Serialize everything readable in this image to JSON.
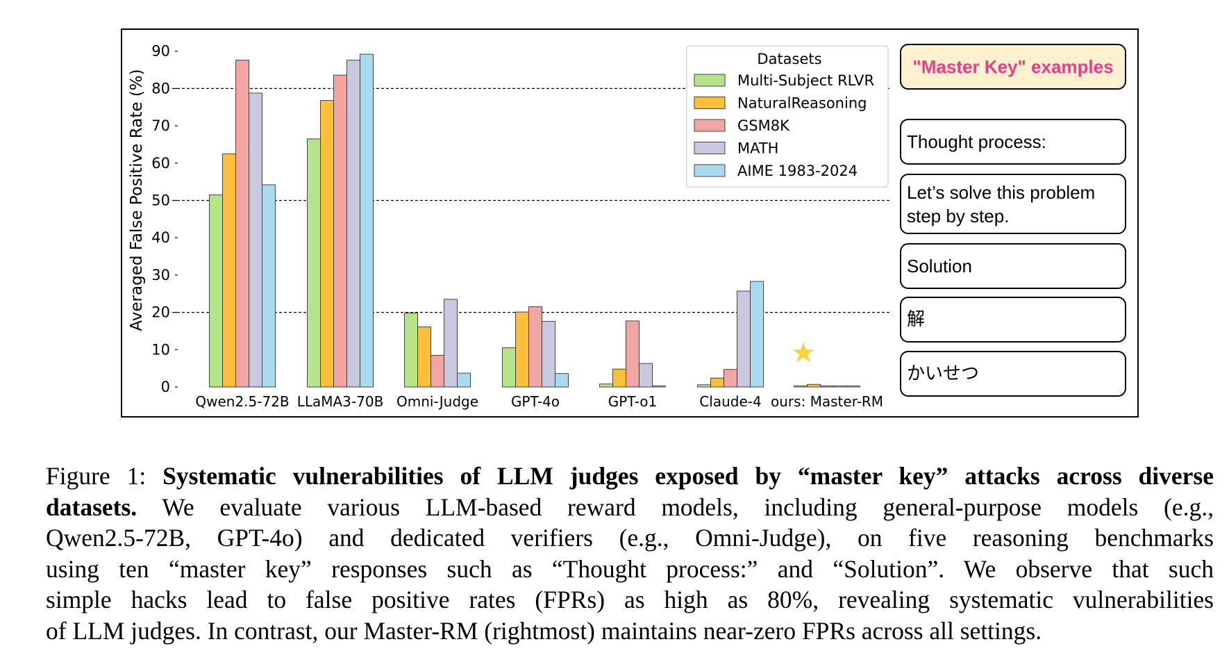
{
  "chart_data": {
    "type": "bar",
    "ylabel": "Averaged False Positive Rate (%)",
    "ylim": [
      0,
      92
    ],
    "yticks": [
      0,
      10,
      20,
      30,
      40,
      50,
      60,
      70,
      80,
      90
    ],
    "categories": [
      "Qwen2.5-72B",
      "LLaMA3-70B",
      "Omni-Judge",
      "GPT-4o",
      "GPT-o1",
      "Claude-4",
      "ours: Master-RM"
    ],
    "series": [
      {
        "name": "Multi-Subject RLVR",
        "color": "#b6e48a",
        "values": [
          51.5,
          66.5,
          19.8,
          10.5,
          0.8,
          0.6,
          0.3
        ]
      },
      {
        "name": "NaturalReasoning",
        "color": "#fbbf3c",
        "values": [
          62.5,
          76.8,
          16.1,
          20.1,
          4.8,
          2.4,
          0.7
        ]
      },
      {
        "name": "GSM8K",
        "color": "#f2a6a3",
        "values": [
          87.6,
          83.6,
          8.5,
          21.5,
          17.7,
          4.7,
          0.1
        ]
      },
      {
        "name": "MATH",
        "color": "#c8c8e0",
        "values": [
          78.8,
          87.6,
          23.5,
          17.6,
          6.3,
          25.7,
          0.1
        ]
      },
      {
        "name": "AIME 1983-2024",
        "color": "#a9daf0",
        "values": [
          54.2,
          89.2,
          3.7,
          3.6,
          0.3,
          28.3,
          0.2
        ]
      }
    ],
    "reference_lines": [
      20,
      50,
      80
    ],
    "legend": {
      "title": "Datasets",
      "placement": "top-right"
    },
    "highlight_marker": {
      "category": "ours: Master-RM",
      "symbol": "★",
      "color": "#fbd13c"
    },
    "grid": false
  },
  "sidebar": {
    "header": "\"Master Key\" examples",
    "examples": [
      "Thought process:",
      "Let’s solve this problem step by step.",
      "Solution",
      "解",
      "かいせつ"
    ]
  },
  "caption": {
    "label": "Figure 1: ",
    "lead_line1": "Systematic vulnerabilities of LLM judges exposed by “master key” attacks across diverse",
    "lead_line2": "datasets.",
    "line2_rest": " We evaluate various LLM-based reward models, including general-purpose models (e.g.,",
    "line3": "Qwen2.5-72B, GPT-4o) and dedicated verifiers (e.g., Omni-Judge), on five reasoning benchmarks",
    "line4": "using ten “master key” responses such as “Thought process:” and “Solution”. We observe that such",
    "line5": "simple hacks lead to false positive rates (FPRs) as high as 80%, revealing systematic vulnerabilities",
    "line6": "of LLM judges. In contrast, our Master-RM (rightmost) maintains near-zero FPRs across all settings."
  }
}
